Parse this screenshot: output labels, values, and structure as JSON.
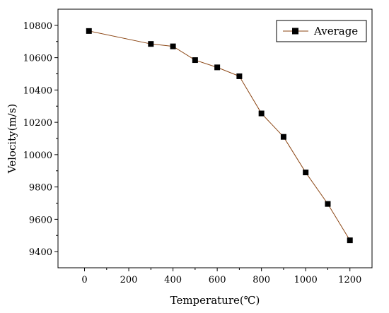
{
  "chart_data": {
    "type": "line",
    "title": "",
    "xlabel": "Temperature(℃)",
    "ylabel": "Velocity(m/s)",
    "xlim": [
      -120,
      1300
    ],
    "ylim": [
      9300,
      10900
    ],
    "xticks": [
      0,
      200,
      400,
      600,
      800,
      1000,
      1200
    ],
    "yticks": [
      9400,
      9600,
      9800,
      10000,
      10200,
      10400,
      10600,
      10800
    ],
    "grid": false,
    "legend_position": "top-right",
    "series": [
      {
        "name": "Average",
        "color": "#8b4513",
        "marker": "square",
        "marker_color": "#000000",
        "x": [
          20,
          300,
          400,
          500,
          600,
          700,
          800,
          900,
          1000,
          1100,
          1200
        ],
        "y": [
          10765,
          10685,
          10670,
          10585,
          10540,
          10485,
          10255,
          10110,
          9890,
          9695,
          9470
        ]
      }
    ]
  }
}
